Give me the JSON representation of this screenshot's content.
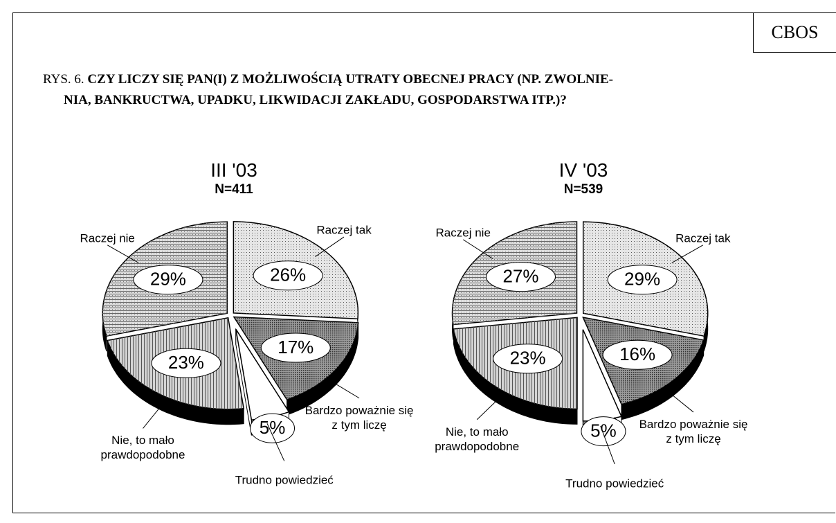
{
  "source": "CBOS",
  "figure_label": "RYS. 6.",
  "title_lines": [
    "CZY LICZY SIĘ PAN(I) Z MOŻLIWOŚCIĄ UTRATY OBECNEJ PRACY (NP. ZWOLNIE-",
    "NIA, BANKRUCTWA, UPADKU, LIKWIDACJI ZAKŁADU, GOSPODARSTWA ITP.)?"
  ],
  "chart_data": [
    {
      "type": "pie",
      "title": "III '03",
      "subtitle": "N=411",
      "categories": [
        "Raczej tak",
        "Bardzo poważnie się z tym liczę",
        "Trudno powiedzieć",
        "Nie, to mało prawdopodobne",
        "Raczej nie"
      ],
      "values": [
        26,
        17,
        5,
        23,
        29
      ],
      "value_labels": [
        "26%",
        "17%",
        "5%",
        "23%",
        "29%"
      ],
      "colors": [
        "#e6e6e6",
        "#9a9a9a",
        "#ffffff",
        "#d4d4d4",
        "#dedede"
      ]
    },
    {
      "type": "pie",
      "title": "IV '03",
      "subtitle": "N=539",
      "categories": [
        "Raczej tak",
        "Bardzo poważnie się z tym liczę",
        "Trudno powiedzieć",
        "Nie, to mało prawdopodobne",
        "Raczej nie"
      ],
      "values": [
        29,
        16,
        5,
        23,
        27
      ],
      "value_labels": [
        "29%",
        "16%",
        "5%",
        "23%",
        "27%"
      ],
      "colors": [
        "#e6e6e6",
        "#9a9a9a",
        "#ffffff",
        "#d4d4d4",
        "#dedede"
      ]
    }
  ]
}
